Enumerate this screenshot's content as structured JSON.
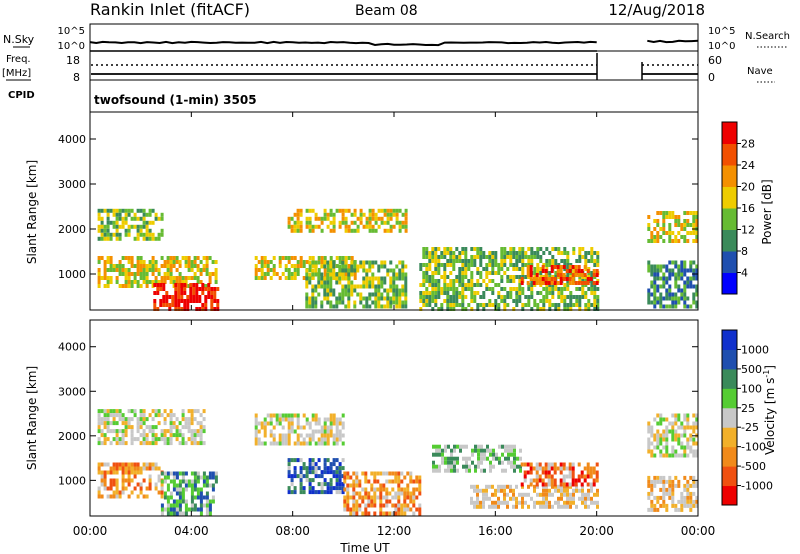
{
  "header": {
    "station": "Rankin Inlet (fitACF)",
    "beam": "Beam 08",
    "date": "12/Aug/2018"
  },
  "noise_panel": {
    "left_label": "N.Sky",
    "right_label": "N.Search",
    "left_ticks": [
      "10^5",
      "10^0"
    ],
    "right_ticks": [
      "10^5",
      "10^0"
    ]
  },
  "freq_panel": {
    "left_label": "Freq.",
    "left_unit": "[MHz]",
    "right_label": "Nave",
    "left_ticks": [
      "18",
      "8"
    ],
    "right_ticks": [
      "60",
      "0"
    ],
    "cpid_label": "CPID",
    "cpid_text": "twofsound (1-min) 3505"
  },
  "colors": {
    "power_scale": [
      "#0000ff",
      "#1f4faf",
      "#3a8a5a",
      "#66bb33",
      "#eecc00",
      "#f49000",
      "#f25000",
      "#ee0000"
    ],
    "velocity_scale": [
      "#ee0000",
      "#f05010",
      "#f18a1a",
      "#f2b02a",
      "#c8c8c8",
      "#55cc33",
      "#3a8a5a",
      "#1f4faf",
      "#1030cc"
    ]
  },
  "chart_data": [
    {
      "type": "heatmap",
      "name": "power",
      "ylabel": "Slant Range [km]",
      "yticks": [
        "4000",
        "3000",
        "2000",
        "1000"
      ],
      "ylim": [
        200,
        4600
      ],
      "colorbar_label": "Power [dB]",
      "colorbar_ticks": [
        "28",
        "24",
        "20",
        "16",
        "12",
        "8",
        "4"
      ],
      "xlim": [
        0,
        24
      ],
      "data_gaps_hours": [
        [
          20.0,
          22.0
        ]
      ],
      "echo_bands": [
        {
          "t0": 0.3,
          "t1": 2.8,
          "r0": 1750,
          "r1": 2450,
          "level": 3
        },
        {
          "t0": 0.3,
          "t1": 5.0,
          "r0": 700,
          "r1": 1400,
          "level": 4
        },
        {
          "t0": 2.5,
          "t1": 5.0,
          "r0": 250,
          "r1": 800,
          "level": 7
        },
        {
          "t0": 6.5,
          "t1": 10.5,
          "r0": 900,
          "r1": 1400,
          "level": 4
        },
        {
          "t0": 7.8,
          "t1": 12.5,
          "r0": 2000,
          "r1": 2450,
          "level": 4
        },
        {
          "t0": 8.5,
          "t1": 12.5,
          "r0": 300,
          "r1": 1300,
          "level": 3
        },
        {
          "t0": 13.0,
          "t1": 20.0,
          "r0": 250,
          "r1": 1600,
          "level": 3
        },
        {
          "t0": 17.0,
          "t1": 20.0,
          "r0": 800,
          "r1": 1200,
          "level": 6
        },
        {
          "t0": 22.0,
          "t1": 24.0,
          "r0": 1700,
          "r1": 2400,
          "level": 4
        },
        {
          "t0": 22.0,
          "t1": 24.0,
          "r0": 250,
          "r1": 1300,
          "level": 2
        }
      ]
    },
    {
      "type": "heatmap",
      "name": "velocity",
      "ylabel": "Slant Range [km]",
      "yticks": [
        "4000",
        "3000",
        "2000",
        "1000"
      ],
      "ylim": [
        200,
        4600
      ],
      "colorbar_label": "Velocity [m s^-1]",
      "colorbar_ticks": [
        "1000",
        "500",
        "100",
        "25",
        "-25",
        "-100",
        "-500",
        "-1000"
      ],
      "xlabel": "Time UT",
      "xticks": [
        "00:00",
        "04:00",
        "08:00",
        "12:00",
        "16:00",
        "20:00",
        "00:00"
      ],
      "xlim": [
        0,
        24
      ],
      "data_gaps_hours": [
        [
          20.0,
          22.0
        ]
      ],
      "echo_bands": [
        {
          "t0": 0.3,
          "t1": 4.5,
          "r0": 1800,
          "r1": 2600,
          "level": 4
        },
        {
          "t0": 0.3,
          "t1": 2.8,
          "r0": 600,
          "r1": 1400,
          "level": 2
        },
        {
          "t0": 2.8,
          "t1": 5.0,
          "r0": 250,
          "r1": 1200,
          "level": 6
        },
        {
          "t0": 6.5,
          "t1": 10.0,
          "r0": 1800,
          "r1": 2500,
          "level": 4
        },
        {
          "t0": 7.8,
          "t1": 10.0,
          "r0": 700,
          "r1": 1500,
          "level": 7
        },
        {
          "t0": 10.0,
          "t1": 13.0,
          "r0": 300,
          "r1": 1200,
          "level": 2
        },
        {
          "t0": 13.5,
          "t1": 17.0,
          "r0": 1200,
          "r1": 1800,
          "level": 5
        },
        {
          "t0": 15.0,
          "t1": 20.0,
          "r0": 400,
          "r1": 900,
          "level": 3
        },
        {
          "t0": 17.0,
          "t1": 20.0,
          "r0": 900,
          "r1": 1400,
          "level": 1
        },
        {
          "t0": 22.0,
          "t1": 24.0,
          "r0": 1600,
          "r1": 2500,
          "level": 4
        },
        {
          "t0": 22.0,
          "t1": 24.0,
          "r0": 300,
          "r1": 1100,
          "level": 3
        }
      ]
    }
  ]
}
